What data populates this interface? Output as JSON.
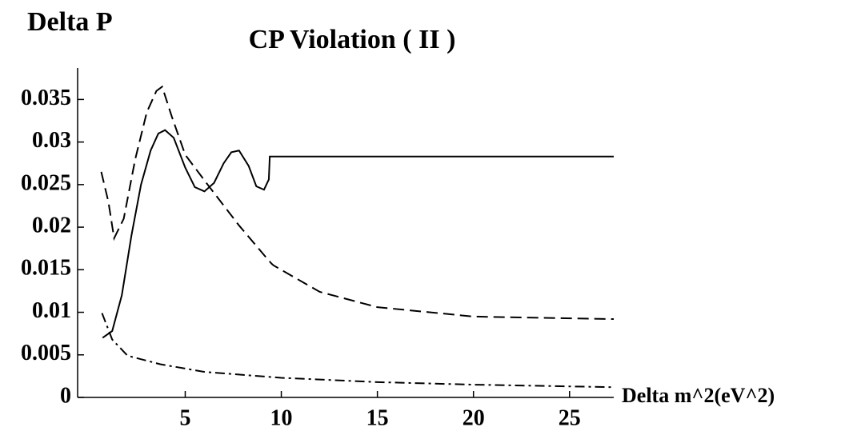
{
  "chart_data": {
    "type": "line",
    "title": "CP Violation ( II )",
    "y_label": "Delta P",
    "x_label": "Delta m^2(eV^2)",
    "xlim": [
      -0.6,
      27.3
    ],
    "ylim": [
      0,
      0.0387
    ],
    "xticks": [
      5,
      10,
      15,
      20,
      25
    ],
    "yticks": [
      0,
      0.005,
      0.01,
      0.015,
      0.02,
      0.025,
      0.03,
      0.035
    ],
    "series": [
      {
        "color": "#000000",
        "dash": "solid",
        "x": [
          0.7,
          1.2,
          1.7,
          2.2,
          2.7,
          3.2,
          3.6,
          3.95,
          4.4,
          5,
          5.5,
          6,
          6.5,
          7,
          7.4,
          7.8,
          8.3,
          8.7,
          9.1,
          9.35,
          9.4,
          27.3
        ],
        "values": [
          0.007,
          0.0078,
          0.012,
          0.019,
          0.025,
          0.029,
          0.031,
          0.0314,
          0.0305,
          0.027,
          0.0247,
          0.0242,
          0.0252,
          0.0275,
          0.0288,
          0.029,
          0.0272,
          0.0248,
          0.0244,
          0.0256,
          0.0283,
          0.0283
        ]
      },
      {
        "color": "#000000",
        "dash": "dashed",
        "x": [
          0.63,
          1.0,
          1.3,
          1.8,
          2.4,
          3.0,
          3.5,
          3.8,
          4.3,
          5.0,
          6.2,
          7.8,
          9.3,
          9.5,
          9.6,
          12,
          15,
          20,
          27.3
        ],
        "values": [
          0.0265,
          0.023,
          0.0187,
          0.021,
          0.028,
          0.0335,
          0.036,
          0.0365,
          0.033,
          0.0285,
          0.0249,
          0.0202,
          0.0162,
          0.0157,
          0.0155,
          0.0124,
          0.0106,
          0.0095,
          0.0092
        ]
      },
      {
        "color": "#000000",
        "dash": "dashdot",
        "x": [
          0.67,
          1.2,
          2,
          3.7,
          6,
          10,
          15,
          20,
          27.3
        ],
        "values": [
          0.0099,
          0.0068,
          0.0049,
          0.0039,
          0.003,
          0.0023,
          0.0018,
          0.0015,
          0.0012
        ]
      }
    ]
  }
}
